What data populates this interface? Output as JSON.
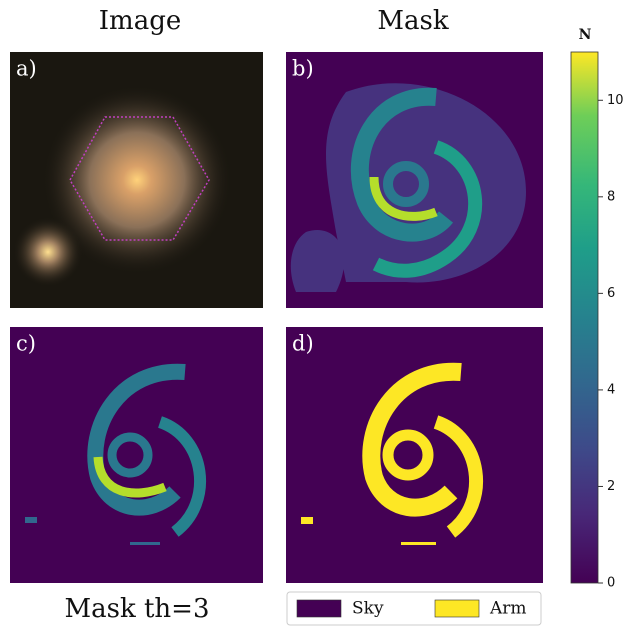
{
  "titles": [
    "Image",
    "Mask"
  ],
  "panels": [
    {
      "label": "a)"
    },
    {
      "label": "b)"
    },
    {
      "label": "c)"
    },
    {
      "label": "d)"
    }
  ],
  "colorbar": {
    "title": "N",
    "lim": [
      0,
      11
    ],
    "ticks": [
      0,
      2,
      4,
      6,
      8,
      10
    ]
  },
  "caption": "Mask th=3",
  "legend": [
    {
      "name": "Sky",
      "color": "#440154"
    },
    {
      "name": "Arm",
      "color": "#fde725"
    }
  ]
}
